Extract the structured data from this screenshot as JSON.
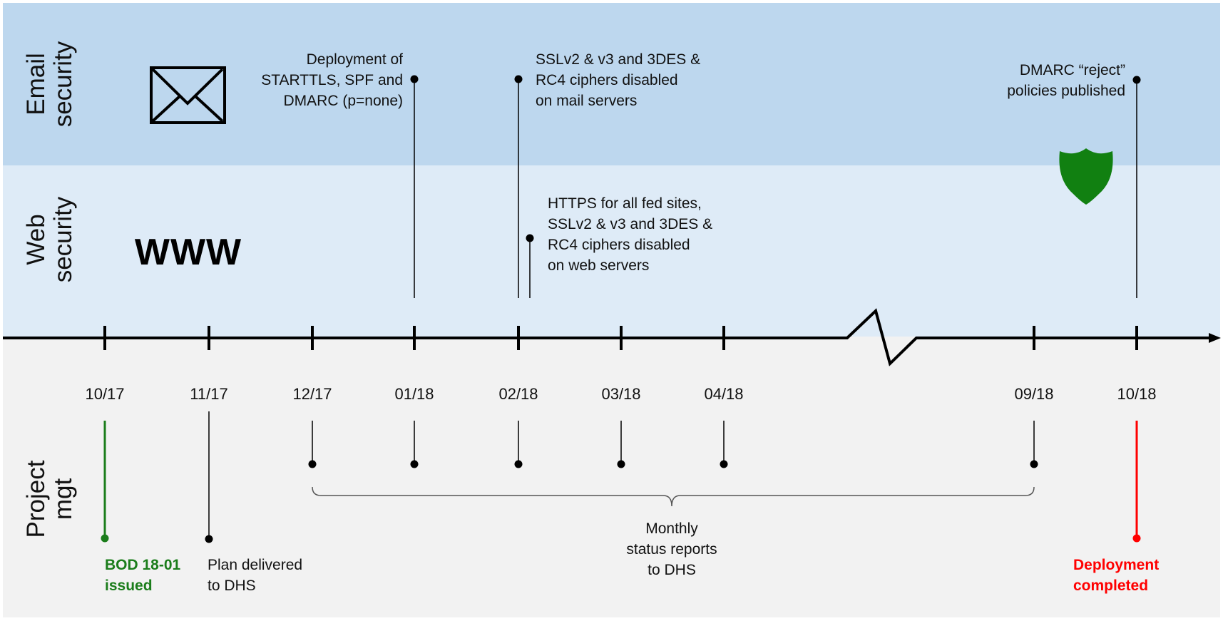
{
  "lanes": {
    "email": "Email security",
    "web": "Web security",
    "project": "Project mgt"
  },
  "lane_title_lines": {
    "email": [
      "Email",
      "security"
    ],
    "web": [
      "Web",
      "security"
    ],
    "project": [
      "Project",
      "mgt"
    ]
  },
  "icons": {
    "envelope": "envelope-icon",
    "shield": "shield-icon",
    "www": "WWW"
  },
  "timeline": {
    "ticks": [
      "10/17",
      "11/17",
      "12/17",
      "01/18",
      "02/18",
      "03/18",
      "04/18",
      "09/18",
      "10/18"
    ],
    "axis_break": true
  },
  "email_events": [
    {
      "month": "01/18",
      "lines": [
        "Deployment of",
        "STARTTLS, SPF and",
        "DMARC (p=none)"
      ]
    },
    {
      "month": "02/18",
      "lines": [
        "SSLv2 & v3 and 3DES &",
        "RC4 ciphers disabled",
        "on mail servers"
      ]
    },
    {
      "month": "10/18",
      "lines": [
        "DMARC “reject”",
        "policies published"
      ]
    }
  ],
  "web_events": [
    {
      "month": "02/18",
      "lines": [
        "HTTPS for all fed sites,",
        "SSLv2 & v3 and 3DES &",
        "RC4 ciphers disabled",
        "on web servers"
      ]
    }
  ],
  "project_events": {
    "bod": {
      "month": "10/17",
      "lines": [
        "BOD 18-01",
        "issued"
      ],
      "color": "#1b7d1b"
    },
    "plan": {
      "month": "11/17",
      "lines": [
        "Plan delivered",
        "to DHS"
      ]
    },
    "monthly": {
      "months": [
        "12/17",
        "01/18",
        "02/18",
        "03/18",
        "04/18",
        "09/18"
      ],
      "lines": [
        "Monthly",
        "status reports",
        "to DHS"
      ]
    },
    "deploy": {
      "month": "10/18",
      "lines": [
        "Deployment",
        "completed"
      ],
      "color": "#ff0000"
    }
  },
  "colors": {
    "email_lane": "#bdd7ee",
    "web_lane": "#deebf7",
    "project_lane": "#f2f2f2",
    "axis": "#000000",
    "shield": "#118011",
    "green": "#1b7d1b",
    "red": "#ff0000"
  }
}
